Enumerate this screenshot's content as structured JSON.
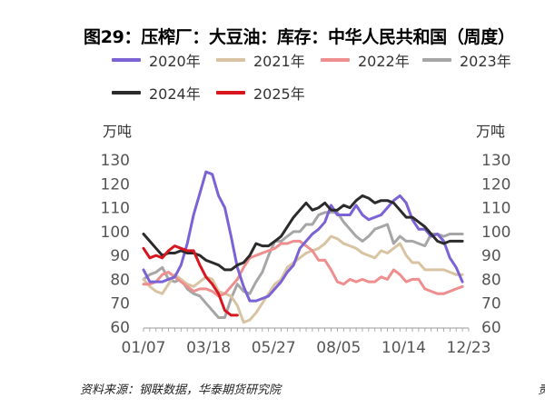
{
  "title": "图29：压榨厂：大豆油：库存：中华人民共和国（周度）",
  "source": "资料来源：钢联数据，华泰期货研究院",
  "corner_mark": "责",
  "chart_data": {
    "type": "line",
    "left_unit": "万吨",
    "right_unit": "万吨",
    "y_ticks": [
      "130",
      "120",
      "110",
      "100",
      "90",
      "80",
      "70",
      "60"
    ],
    "x_ticks": [
      "01/07",
      "03/18",
      "05/27",
      "08/05",
      "10/14",
      "12/23"
    ],
    "ylim": [
      60,
      130
    ],
    "xlim": [
      0,
      52
    ],
    "series": [
      {
        "name": "2020年",
        "color": "#7b63d6",
        "x": [
          0,
          1,
          2,
          3,
          4,
          5,
          6,
          7,
          8,
          9,
          10,
          11,
          12,
          13,
          14,
          15,
          16,
          17,
          18,
          19,
          20,
          21,
          22,
          23,
          24,
          25,
          26,
          27,
          28,
          29,
          30,
          31,
          32,
          33,
          34,
          35,
          36,
          37,
          38,
          39,
          40,
          41,
          42,
          43,
          44,
          45,
          46,
          47,
          48,
          49,
          50,
          51
        ],
        "y": [
          84,
          79,
          79,
          79,
          80,
          81,
          86,
          95,
          107,
          116,
          125,
          124,
          115,
          110,
          98,
          85,
          77,
          71,
          71,
          72,
          73,
          76,
          79,
          83,
          86,
          93,
          96,
          99,
          101,
          104,
          111,
          107,
          107,
          107,
          111,
          107,
          105,
          106,
          107,
          110,
          113,
          115,
          112,
          105,
          101,
          101,
          98,
          99,
          96,
          89,
          85,
          79
        ]
      },
      {
        "name": "2021年",
        "color": "#d8c4a2",
        "x": [
          0,
          1,
          2,
          3,
          4,
          5,
          6,
          7,
          8,
          9,
          10,
          11,
          12,
          13,
          14,
          15,
          16,
          17,
          18,
          19,
          20,
          21,
          22,
          23,
          24,
          25,
          26,
          27,
          28,
          29,
          30,
          31,
          32,
          33,
          34,
          35,
          36,
          37,
          38,
          39,
          40,
          41,
          42,
          43,
          44,
          45,
          46,
          47,
          48,
          49,
          50,
          51
        ],
        "y": [
          80,
          77,
          75,
          74,
          78,
          82,
          80,
          78,
          77,
          79,
          81,
          80,
          75,
          74,
          73,
          69,
          62,
          63,
          66,
          70,
          74,
          78,
          80,
          85,
          87,
          89,
          91,
          92,
          93,
          95,
          98,
          97,
          95,
          94,
          93,
          91,
          90,
          89,
          92,
          91,
          93,
          95,
          90,
          87,
          87,
          84,
          84,
          84,
          84,
          83,
          82,
          82
        ]
      },
      {
        "name": "2022年",
        "color": "#ee8e8e",
        "x": [
          0,
          1,
          2,
          3,
          4,
          5,
          6,
          7,
          8,
          9,
          10,
          11,
          12,
          13,
          14,
          15,
          16,
          17,
          18,
          19,
          20,
          21,
          22,
          23,
          24,
          25,
          26,
          27,
          28,
          29,
          30,
          31,
          32,
          33,
          34,
          35,
          36,
          37,
          38,
          39,
          40,
          41,
          42,
          43,
          44,
          45,
          46,
          47,
          48,
          49,
          50,
          51
        ],
        "y": [
          78,
          78,
          79,
          82,
          83,
          81,
          79,
          77,
          75,
          76,
          76,
          75,
          73,
          74,
          77,
          80,
          85,
          89,
          90,
          91,
          92,
          93,
          95,
          95,
          96,
          96,
          94,
          92,
          88,
          88,
          84,
          79,
          78,
          80,
          79,
          80,
          79,
          79,
          81,
          80,
          84,
          82,
          79,
          80,
          80,
          76,
          75,
          74,
          74,
          75,
          76,
          77
        ]
      },
      {
        "name": "2023年",
        "color": "#a6a6a6",
        "x": [
          0,
          1,
          2,
          3,
          4,
          5,
          6,
          7,
          8,
          9,
          10,
          11,
          12,
          13,
          14,
          15,
          16,
          17,
          18,
          19,
          20,
          21,
          22,
          23,
          24,
          25,
          26,
          27,
          28,
          29,
          30,
          31,
          32,
          33,
          34,
          35,
          36,
          37,
          38,
          39,
          40,
          41,
          42,
          43,
          44,
          45,
          46,
          47,
          48,
          49,
          50,
          51
        ],
        "y": [
          80,
          82,
          83,
          85,
          80,
          79,
          80,
          76,
          74,
          73,
          70,
          67,
          64,
          64,
          72,
          78,
          75,
          74,
          79,
          83,
          90,
          96,
          96,
          98,
          100,
          100,
          103,
          103,
          107,
          108,
          108,
          108,
          104,
          101,
          98,
          96,
          98,
          101,
          102,
          103,
          95,
          98,
          96,
          96,
          95,
          94,
          99,
          99,
          98,
          99,
          99,
          99
        ]
      },
      {
        "name": "2024年",
        "color": "#2b2b2b",
        "x": [
          0,
          1,
          2,
          3,
          4,
          5,
          6,
          7,
          8,
          9,
          10,
          11,
          12,
          13,
          14,
          15,
          16,
          17,
          18,
          19,
          20,
          21,
          22,
          23,
          24,
          25,
          26,
          27,
          28,
          29,
          30,
          31,
          32,
          33,
          34,
          35,
          36,
          37,
          38,
          39,
          40,
          41,
          42,
          43,
          44,
          45,
          46,
          47,
          48,
          49,
          50,
          51
        ],
        "y": [
          99,
          96,
          93,
          90,
          91,
          91,
          92,
          91,
          91,
          90,
          88,
          87,
          86,
          84,
          84,
          86,
          87,
          90,
          95,
          94,
          94,
          96,
          98,
          102,
          106,
          109,
          112,
          109,
          110,
          112,
          109,
          109,
          111,
          110,
          113,
          115,
          114,
          112,
          113,
          113,
          112,
          109,
          106,
          106,
          104,
          102,
          99,
          96,
          95,
          96,
          96,
          96
        ]
      },
      {
        "name": "2025年",
        "color": "#d7161f",
        "x": [
          0,
          1,
          2,
          3,
          4,
          5,
          6,
          7,
          8,
          9,
          10,
          11,
          12,
          13,
          14,
          15
        ],
        "y": [
          93,
          89,
          90,
          89,
          92,
          94,
          93,
          92,
          92,
          86,
          81,
          78,
          74,
          67,
          65,
          65
        ]
      }
    ]
  }
}
